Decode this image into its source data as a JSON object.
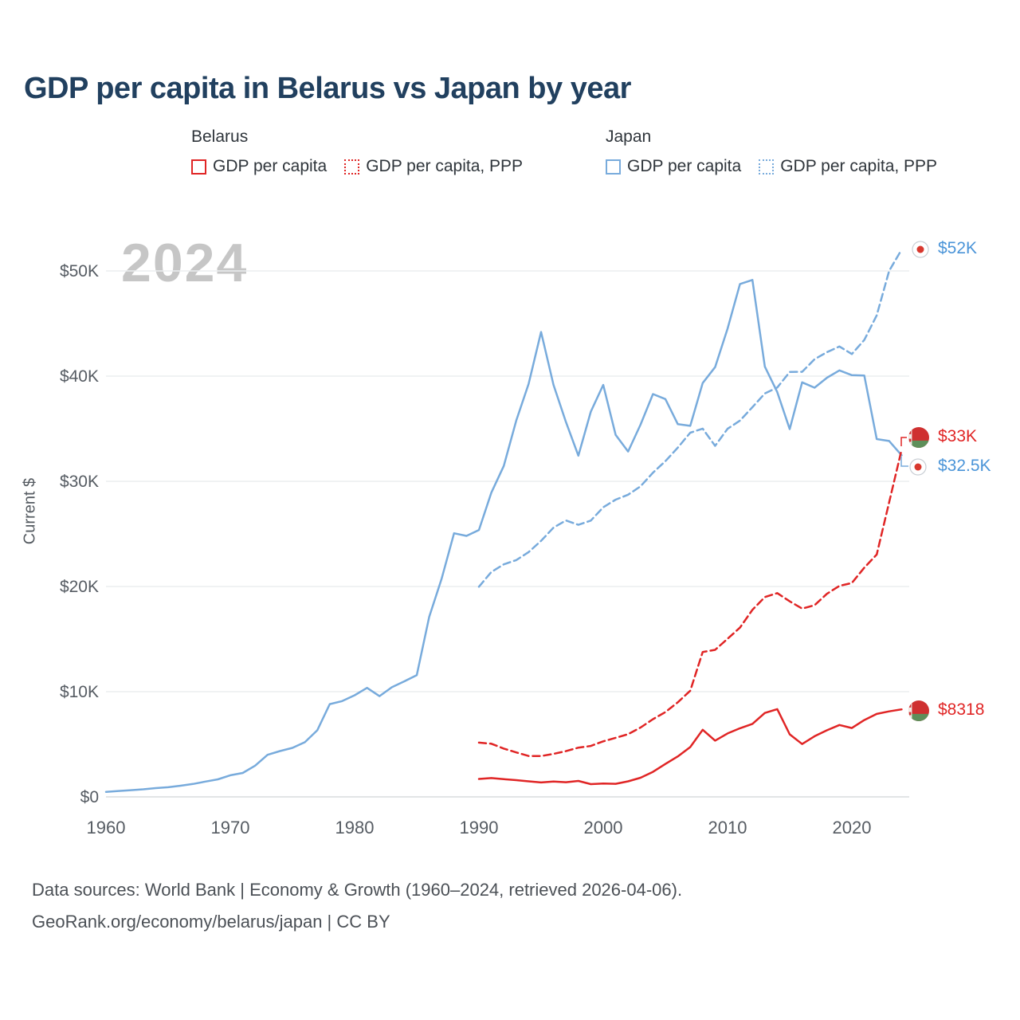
{
  "page": {
    "title": "GDP per capita in Belarus vs Japan by year",
    "watermark": "2024",
    "footer_line1": "Data sources: World Bank | Economy & Growth (1960–2024, retrieved 2026-04-06).",
    "footer_line2": "GeoRank.org/economy/belarus/japan | CC BY"
  },
  "legend": {
    "groups": [
      {
        "country": "Belarus",
        "items": [
          {
            "label": "GDP per capita",
            "style": "solid",
            "color": "#e02525"
          },
          {
            "label": "GDP per capita, PPP",
            "style": "dotted",
            "color": "#e02525"
          }
        ]
      },
      {
        "country": "Japan",
        "items": [
          {
            "label": "GDP per capita",
            "style": "solid",
            "color": "#78abdc"
          },
          {
            "label": "GDP per capita, PPP",
            "style": "dotted",
            "color": "#78abdc"
          }
        ]
      }
    ]
  },
  "chart_data": {
    "type": "line",
    "title": "GDP per capita in Belarus vs Japan by year",
    "xlabel": "",
    "ylabel": "Current $",
    "xlim": [
      1958,
      2026
    ],
    "ylim": [
      0,
      52500
    ],
    "grid": "horizontal",
    "legend_position": "top",
    "x_ticks": [
      1960,
      1970,
      1980,
      1990,
      2000,
      2010,
      2020
    ],
    "y_ticks": [
      {
        "value": 0,
        "label": "$0"
      },
      {
        "value": 10000,
        "label": "$10K"
      },
      {
        "value": 20000,
        "label": "$20K"
      },
      {
        "value": 30000,
        "label": "$30K"
      },
      {
        "value": 40000,
        "label": "$40K"
      },
      {
        "value": 50000,
        "label": "$50K"
      }
    ],
    "series": [
      {
        "name": "GDP per capita",
        "country": "Japan",
        "color": "#78abdc",
        "line_style": "solid",
        "start_year": 1960,
        "values": [
          479,
          564,
          634,
          718,
          836,
          920,
          1058,
          1228,
          1451,
          1669,
          2056,
          2272,
          2967,
          3998,
          4353,
          4659,
          5197,
          6335,
          8821,
          9105,
          9659,
          10361,
          9578,
          10425,
          10984,
          11577,
          17112,
          20745,
          25059,
          24813,
          25371,
          28925,
          31465,
          35766,
          39269,
          44198,
          39164,
          35639,
          32437,
          36622,
          39169,
          34411,
          32832,
          35387,
          38299,
          37819,
          35434,
          35275,
          39339,
          40855,
          44508,
          48760,
          49145,
          40899,
          38475,
          34961,
          39411,
          38903,
          39850,
          40548,
          40089,
          40059,
          34017,
          33834,
          32476
        ]
      },
      {
        "name": "GDP per capita, PPP",
        "country": "Japan",
        "color": "#78abdc",
        "line_style": "dashed",
        "start_year": 1990,
        "values": [
          19980,
          21378,
          22106,
          22505,
          23270,
          24343,
          25596,
          26279,
          25860,
          26267,
          27527,
          28259,
          28725,
          29524,
          30816,
          31920,
          33204,
          34619,
          35004,
          33375,
          34989,
          35775,
          37045,
          38350,
          38920,
          40392,
          40408,
          41607,
          42280,
          42820,
          42102,
          43437,
          45782,
          50010,
          52022
        ]
      },
      {
        "name": "GDP per capita, PPP",
        "country": "Belarus",
        "color": "#e02525",
        "line_style": "dashed",
        "start_year": 1990,
        "values": [
          5160,
          5050,
          4590,
          4230,
          3890,
          3880,
          4090,
          4350,
          4680,
          4840,
          5280,
          5610,
          5960,
          6590,
          7390,
          8060,
          8990,
          10090,
          13770,
          13980,
          15030,
          16090,
          17780,
          18990,
          19370,
          18590,
          17900,
          18220,
          19310,
          20060,
          20330,
          21790,
          23040,
          28010,
          33000
        ]
      },
      {
        "name": "GDP per capita",
        "country": "Belarus",
        "color": "#e02525",
        "line_style": "solid",
        "start_year": 1990,
        "values": [
          1705,
          1790,
          1680,
          1590,
          1480,
          1371,
          1452,
          1397,
          1512,
          1210,
          1273,
          1244,
          1479,
          1819,
          2378,
          3126,
          3848,
          4736,
          6377,
          5351,
          6029,
          6519,
          6940,
          7979,
          8340,
          5949,
          5022,
          5762,
          6330,
          6837,
          6542,
          7304,
          7888,
          8130,
          8318
        ]
      }
    ],
    "annotations": [
      {
        "text": "$52K",
        "color": "#4a94d8",
        "series": "Japan GDP per capita, PPP",
        "flag": "japan"
      },
      {
        "text": "$33K",
        "color": "#e02525",
        "series": "Belarus GDP per capita, PPP",
        "flag": "belarus"
      },
      {
        "text": "$32.5K",
        "color": "#4a94d8",
        "series": "Japan GDP per capita",
        "flag": "japan"
      },
      {
        "text": "$8318",
        "color": "#e02525",
        "series": "Belarus GDP per capita",
        "flag": "belarus"
      }
    ]
  }
}
